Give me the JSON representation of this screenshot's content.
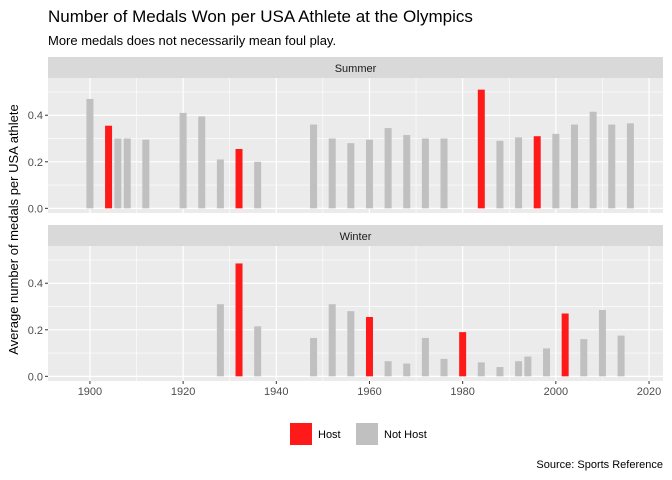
{
  "header": {
    "title": "Number of Medals Won per USA Athlete at the Olympics",
    "subtitle": "More medals does not necessarily mean foul play."
  },
  "caption": "Source: Sports Reference",
  "colors": {
    "host": "#ff1a1a",
    "not_host": "#c0c0c0",
    "panel_bg": "#ebebeb",
    "strip_bg": "#d9d9d9"
  },
  "chart_data": {
    "type": "bar",
    "ylabel": "Average number of medals per USA athlete",
    "xlabel": "",
    "xlim": [
      1891,
      2023
    ],
    "x_ticks": [
      1900,
      1920,
      1940,
      1960,
      1980,
      2000,
      2020
    ],
    "ylim": [
      -0.02,
      0.56
    ],
    "y_ticks": [
      0.0,
      0.2,
      0.4
    ],
    "y_tick_labels": [
      "0.0",
      "0.2",
      "0.4"
    ],
    "grid": true,
    "legend": {
      "position": "bottom",
      "entries": [
        {
          "key": "host",
          "label": "Host"
        },
        {
          "key": "not_host",
          "label": "Not Host"
        }
      ]
    },
    "panels": [
      {
        "name": "Summer",
        "bars": [
          {
            "year": 1900,
            "value": 0.47,
            "host": false
          },
          {
            "year": 1904,
            "value": 0.355,
            "host": true
          },
          {
            "year": 1906,
            "value": 0.3,
            "host": false
          },
          {
            "year": 1908,
            "value": 0.3,
            "host": false
          },
          {
            "year": 1912,
            "value": 0.295,
            "host": false
          },
          {
            "year": 1920,
            "value": 0.41,
            "host": false
          },
          {
            "year": 1924,
            "value": 0.395,
            "host": false
          },
          {
            "year": 1928,
            "value": 0.21,
            "host": false
          },
          {
            "year": 1932,
            "value": 0.255,
            "host": true
          },
          {
            "year": 1936,
            "value": 0.2,
            "host": false
          },
          {
            "year": 1948,
            "value": 0.36,
            "host": false
          },
          {
            "year": 1952,
            "value": 0.3,
            "host": false
          },
          {
            "year": 1956,
            "value": 0.28,
            "host": false
          },
          {
            "year": 1960,
            "value": 0.295,
            "host": false
          },
          {
            "year": 1964,
            "value": 0.345,
            "host": false
          },
          {
            "year": 1968,
            "value": 0.315,
            "host": false
          },
          {
            "year": 1972,
            "value": 0.3,
            "host": false
          },
          {
            "year": 1976,
            "value": 0.3,
            "host": false
          },
          {
            "year": 1984,
            "value": 0.51,
            "host": true
          },
          {
            "year": 1988,
            "value": 0.29,
            "host": false
          },
          {
            "year": 1992,
            "value": 0.305,
            "host": false
          },
          {
            "year": 1996,
            "value": 0.31,
            "host": true
          },
          {
            "year": 2000,
            "value": 0.32,
            "host": false
          },
          {
            "year": 2004,
            "value": 0.36,
            "host": false
          },
          {
            "year": 2008,
            "value": 0.415,
            "host": false
          },
          {
            "year": 2012,
            "value": 0.36,
            "host": false
          },
          {
            "year": 2016,
            "value": 0.365,
            "host": false
          }
        ]
      },
      {
        "name": "Winter",
        "bars": [
          {
            "year": 1928,
            "value": 0.31,
            "host": false
          },
          {
            "year": 1932,
            "value": 0.485,
            "host": true
          },
          {
            "year": 1936,
            "value": 0.215,
            "host": false
          },
          {
            "year": 1948,
            "value": 0.165,
            "host": false
          },
          {
            "year": 1952,
            "value": 0.31,
            "host": false
          },
          {
            "year": 1956,
            "value": 0.28,
            "host": false
          },
          {
            "year": 1960,
            "value": 0.255,
            "host": true
          },
          {
            "year": 1964,
            "value": 0.065,
            "host": false
          },
          {
            "year": 1968,
            "value": 0.055,
            "host": false
          },
          {
            "year": 1972,
            "value": 0.165,
            "host": false
          },
          {
            "year": 1976,
            "value": 0.075,
            "host": false
          },
          {
            "year": 1980,
            "value": 0.19,
            "host": true
          },
          {
            "year": 1984,
            "value": 0.06,
            "host": false
          },
          {
            "year": 1988,
            "value": 0.04,
            "host": false
          },
          {
            "year": 1992,
            "value": 0.065,
            "host": false
          },
          {
            "year": 1994,
            "value": 0.085,
            "host": false
          },
          {
            "year": 1998,
            "value": 0.12,
            "host": false
          },
          {
            "year": 2002,
            "value": 0.27,
            "host": true
          },
          {
            "year": 2006,
            "value": 0.16,
            "host": false
          },
          {
            "year": 2010,
            "value": 0.285,
            "host": false
          },
          {
            "year": 2014,
            "value": 0.175,
            "host": false
          }
        ]
      }
    ]
  }
}
